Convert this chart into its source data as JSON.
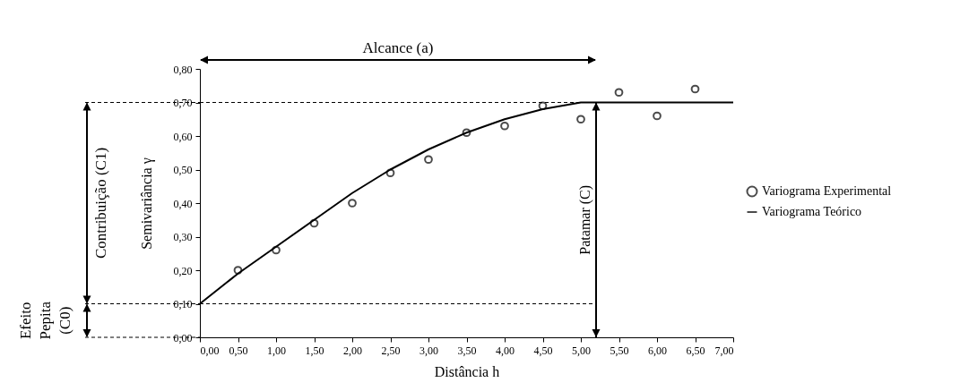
{
  "chart_data": {
    "type": "scatter",
    "xlabel": "Distância h",
    "ylabel": "Semivariância γ",
    "xlim": [
      0,
      7
    ],
    "ylim": [
      0,
      0.8
    ],
    "xticks": [
      {
        "value": 0,
        "label": "0,00"
      },
      {
        "value": 0.5,
        "label": "0,50"
      },
      {
        "value": 1,
        "label": "1,00"
      },
      {
        "value": 1.5,
        "label": "1,50"
      },
      {
        "value": 2,
        "label": "2,00"
      },
      {
        "value": 2.5,
        "label": "2,50"
      },
      {
        "value": 3,
        "label": "3,00"
      },
      {
        "value": 3.5,
        "label": "3,50"
      },
      {
        "value": 4,
        "label": "4,00"
      },
      {
        "value": 4.5,
        "label": "4,50"
      },
      {
        "value": 5,
        "label": "5,00"
      },
      {
        "value": 5.5,
        "label": "5,50"
      },
      {
        "value": 6,
        "label": "6,00"
      },
      {
        "value": 6.5,
        "label": "6,50"
      },
      {
        "value": 7,
        "label": "7,00"
      }
    ],
    "yticks": [
      {
        "value": 0,
        "label": "0,00"
      },
      {
        "value": 0.1,
        "label": "0,10"
      },
      {
        "value": 0.2,
        "label": "0,20"
      },
      {
        "value": 0.3,
        "label": "0,30"
      },
      {
        "value": 0.4,
        "label": "0,40"
      },
      {
        "value": 0.5,
        "label": "0,50"
      },
      {
        "value": 0.6,
        "label": "0,60"
      },
      {
        "value": 0.7,
        "label": "0,70"
      },
      {
        "value": 0.8,
        "label": "0,80"
      }
    ],
    "series": [
      {
        "name": "Variograma Experimental",
        "type": "scatter",
        "color": "#000000",
        "marker": "circle",
        "x": [
          0.5,
          1,
          1.5,
          2,
          2.5,
          3,
          3.5,
          4,
          4.5,
          5,
          5.5,
          6,
          6.5
        ],
        "values": [
          0.2,
          0.26,
          0.34,
          0.4,
          0.49,
          0.53,
          0.61,
          0.63,
          0.69,
          0.65,
          0.73,
          0.66,
          0.74
        ]
      },
      {
        "name": "Variograma Teórico",
        "type": "line",
        "color": "#000000",
        "line_style": "solid",
        "x": [
          0,
          0.5,
          1,
          1.5,
          2,
          2.5,
          3,
          3.5,
          4,
          4.5,
          5,
          5.2,
          7
        ],
        "values": [
          0.1,
          0.19,
          0.27,
          0.35,
          0.43,
          0.5,
          0.56,
          0.61,
          0.65,
          0.68,
          0.7,
          0.7,
          0.7
        ]
      }
    ],
    "ref_lines": [
      {
        "axis": "y",
        "value": 0.7,
        "line_style": "dashed"
      },
      {
        "axis": "y",
        "value": 0.1,
        "line_style": "dashed"
      },
      {
        "axis": "x",
        "value": 5.2,
        "label": "Patamar (C)",
        "line_style": "solid"
      }
    ],
    "annotations": [
      "Alcance (a)",
      "Contribuição (C1)",
      "Efeito Pepita (C0)"
    ],
    "legend": "right",
    "grid": false
  }
}
